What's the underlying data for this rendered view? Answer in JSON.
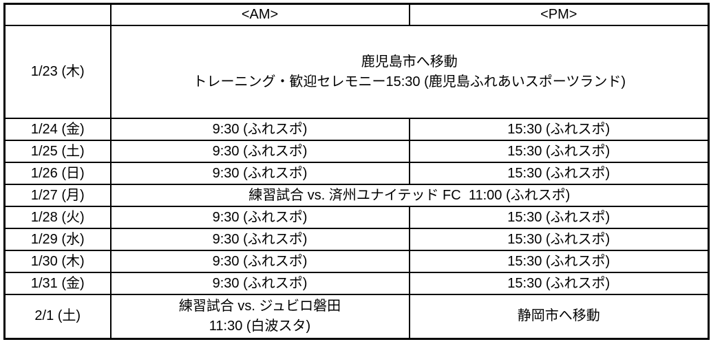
{
  "table": {
    "title": "training-camp-schedule",
    "header": {
      "date": "",
      "am": "<AM>",
      "pm": "<PM>"
    },
    "rows": [
      {
        "date": "1/23 (木)",
        "span": "鹿児島市へ移動\nトレーニング・歓迎セレモニー15:30 (鹿児島ふれあいスポーツランド)"
      },
      {
        "date": "1/24 (金)",
        "am": "9:30 (ふれスポ)",
        "pm": "15:30 (ふれスポ)"
      },
      {
        "date": "1/25 (土)",
        "am": "9:30 (ふれスポ)",
        "pm": "15:30 (ふれスポ)"
      },
      {
        "date": "1/26 (日)",
        "am": "9:30 (ふれスポ)",
        "pm": "15:30 (ふれスポ)"
      },
      {
        "date": "1/27 (月)",
        "span": "練習試合 vs. 済州ユナイテッド FC  11:00 (ふれスポ)"
      },
      {
        "date": "1/28 (火)",
        "am": "9:30 (ふれスポ)",
        "pm": "15:30 (ふれスポ)"
      },
      {
        "date": "1/29 (水)",
        "am": "9:30 (ふれスポ)",
        "pm": "15:30 (ふれスポ)"
      },
      {
        "date": "1/30 (木)",
        "am": "9:30 (ふれスポ)",
        "pm": "15:30 (ふれスポ)"
      },
      {
        "date": "1/31 (金)",
        "am": "9:30 (ふれスポ)",
        "pm": "15:30 (ふれスポ)"
      },
      {
        "date": "2/1 (土)",
        "am": "練習試合 vs. ジュビロ磐田\n11:30 (白波スタ)",
        "pm": "静岡市へ移動"
      }
    ],
    "colors": {
      "border": "#000000",
      "text": "#000000",
      "background": "#ffffff"
    }
  }
}
